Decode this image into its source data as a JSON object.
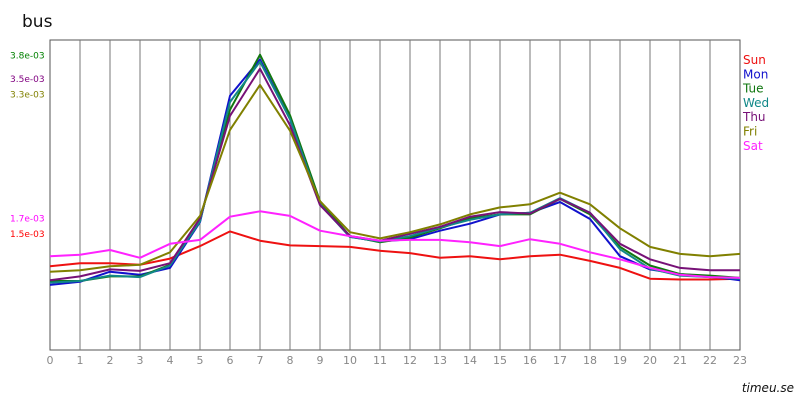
{
  "chart_data": {
    "type": "line",
    "title": "bus",
    "xlabel": "",
    "ylabel": "",
    "x": [
      0,
      1,
      2,
      3,
      4,
      5,
      6,
      7,
      8,
      9,
      10,
      11,
      12,
      13,
      14,
      15,
      16,
      17,
      18,
      19,
      20,
      21,
      22,
      23
    ],
    "xlim": [
      0,
      23
    ],
    "ylim": [
      0,
      0.004
    ],
    "grid": "vertical",
    "legend": "right",
    "y_annotations": [
      {
        "label": "3.8e-03",
        "value": 0.0038,
        "color": "#008000"
      },
      {
        "label": "3.5e-03",
        "value": 0.0035,
        "color": "#800080"
      },
      {
        "label": "3.3e-03",
        "value": 0.0033,
        "color": "#808000"
      },
      {
        "label": "1.7e-03",
        "value": 0.0017,
        "color": "#ff00ff"
      },
      {
        "label": "1.5e-03",
        "value": 0.0015,
        "color": "#ff0000"
      }
    ],
    "series": [
      {
        "name": "Sun",
        "color": "#ee1111",
        "values": [
          0.00108,
          0.00112,
          0.00112,
          0.0011,
          0.00118,
          0.00134,
          0.00153,
          0.00141,
          0.00135,
          0.00134,
          0.00133,
          0.00128,
          0.00125,
          0.00119,
          0.00121,
          0.00117,
          0.00121,
          0.00123,
          0.00115,
          0.00106,
          0.00092,
          0.00091,
          0.00091,
          0.00092
        ]
      },
      {
        "name": "Mon",
        "color": "#1111cc",
        "values": [
          0.00084,
          0.00088,
          0.00101,
          0.00097,
          0.00106,
          0.00165,
          0.00328,
          0.00375,
          0.00298,
          0.00188,
          0.00146,
          0.0014,
          0.00143,
          0.00154,
          0.00163,
          0.00175,
          0.00177,
          0.00191,
          0.00169,
          0.00121,
          0.00104,
          0.00098,
          0.00095,
          0.0009
        ]
      },
      {
        "name": "Tue",
        "color": "#117711",
        "values": [
          0.00089,
          0.00089,
          0.00095,
          0.00095,
          0.0011,
          0.00168,
          0.0031,
          0.00381,
          0.00303,
          0.00192,
          0.00147,
          0.00139,
          0.00145,
          0.00157,
          0.0017,
          0.00175,
          0.00175,
          0.00195,
          0.00175,
          0.00133,
          0.00109,
          0.00098,
          0.00096,
          0.00093
        ]
      },
      {
        "name": "Wed",
        "color": "#118888",
        "values": [
          0.00087,
          0.00089,
          0.00096,
          0.00094,
          0.00109,
          0.00166,
          0.0032,
          0.00372,
          0.00298,
          0.00188,
          0.00146,
          0.0014,
          0.00147,
          0.00158,
          0.00168,
          0.00175,
          0.00177,
          0.00196,
          0.00177,
          0.0013,
          0.00105,
          0.00096,
          0.00094,
          0.00092
        ]
      },
      {
        "name": "Thu",
        "color": "#771177",
        "values": [
          0.0009,
          0.00095,
          0.00104,
          0.00102,
          0.00112,
          0.0017,
          0.00302,
          0.00363,
          0.0029,
          0.00187,
          0.00147,
          0.00141,
          0.0015,
          0.00159,
          0.00172,
          0.00178,
          0.00176,
          0.00195,
          0.00177,
          0.00137,
          0.00117,
          0.00106,
          0.00103,
          0.00103
        ]
      },
      {
        "name": "Fri",
        "color": "#808000",
        "values": [
          0.00101,
          0.00103,
          0.00108,
          0.0011,
          0.00126,
          0.00173,
          0.00284,
          0.00342,
          0.00283,
          0.00192,
          0.00152,
          0.00144,
          0.00152,
          0.00162,
          0.00175,
          0.00184,
          0.00188,
          0.00203,
          0.00188,
          0.00157,
          0.00133,
          0.00124,
          0.00121,
          0.00124
        ]
      },
      {
        "name": "Sat",
        "color": "#ff22ff",
        "values": [
          0.00121,
          0.00123,
          0.00129,
          0.00119,
          0.00137,
          0.00142,
          0.00172,
          0.00179,
          0.00173,
          0.00154,
          0.00147,
          0.00141,
          0.00142,
          0.00142,
          0.00139,
          0.00134,
          0.00143,
          0.00137,
          0.00126,
          0.00117,
          0.00106,
          0.00097,
          0.00094,
          0.00093
        ]
      }
    ]
  },
  "branding": {
    "text": "timeu.se"
  }
}
